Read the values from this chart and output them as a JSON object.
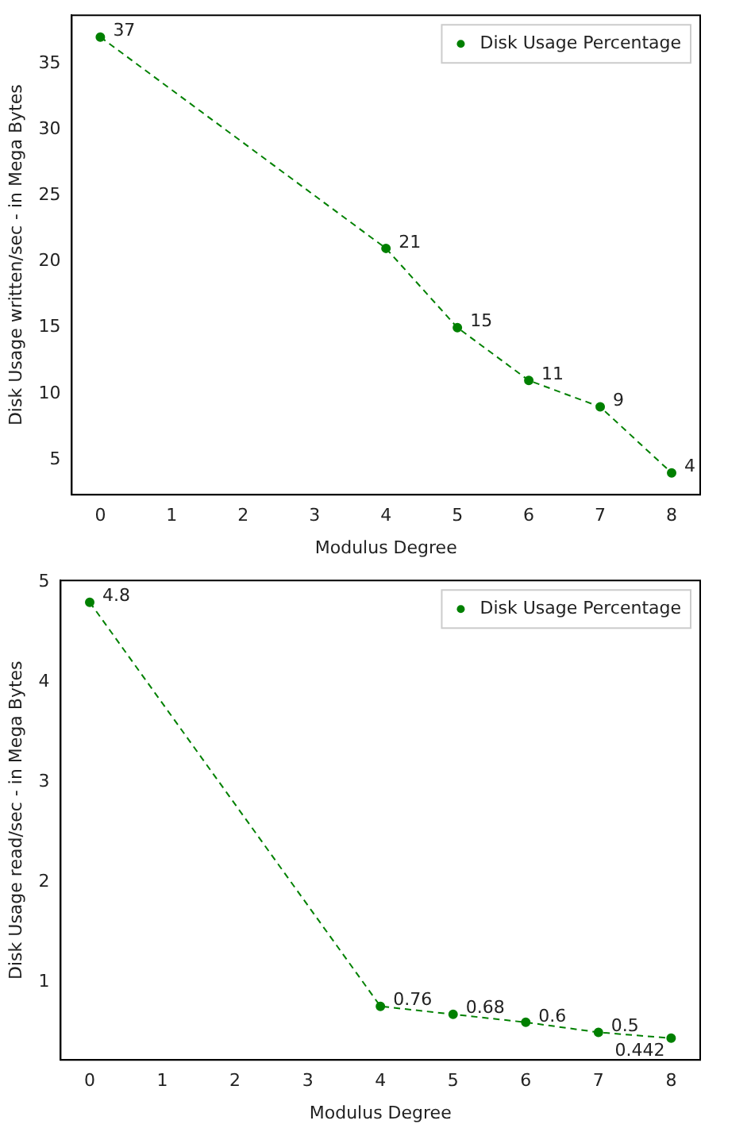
{
  "chart_data": [
    {
      "type": "line",
      "xlabel": "Modulus Degree",
      "ylabel": "Disk Usage written/sec - in Mega Bytes",
      "x": [
        0,
        4,
        5,
        6,
        7,
        8
      ],
      "series": [
        {
          "name": "Disk Usage Percentage",
          "color": "#008000",
          "values": [
            37,
            21,
            15,
            11,
            9,
            4
          ]
        }
      ],
      "xlim": [
        -0.4,
        8.4
      ],
      "xticks": [
        0,
        1,
        2,
        3,
        4,
        5,
        6,
        7,
        8
      ],
      "ylim": [
        2.35,
        38.65
      ],
      "yticks": [
        5,
        10,
        15,
        20,
        25,
        30,
        35
      ],
      "data_labels": true,
      "legend": "top right",
      "marker": "circle",
      "line_style": "dashed",
      "grid": false
    },
    {
      "type": "line",
      "xlabel": "Modulus Degree",
      "ylabel": "Disk Usage read/sec - in Mega Bytes",
      "x": [
        0,
        4,
        5,
        6,
        7,
        8
      ],
      "series": [
        {
          "name": "Disk Usage Percentage",
          "color": "#008000",
          "values": [
            4.8,
            0.76,
            0.68,
            0.6,
            0.5,
            0.442
          ]
        }
      ],
      "xlim": [
        -0.4,
        8.4
      ],
      "xticks": [
        0,
        1,
        2,
        3,
        4,
        5,
        6,
        7,
        8
      ],
      "ylim": [
        0.224,
        5.018
      ],
      "yticks": [
        1,
        2,
        3,
        4,
        5
      ],
      "data_labels": true,
      "legend": "top right",
      "marker": "circle",
      "line_style": "dashed",
      "grid": false
    }
  ]
}
